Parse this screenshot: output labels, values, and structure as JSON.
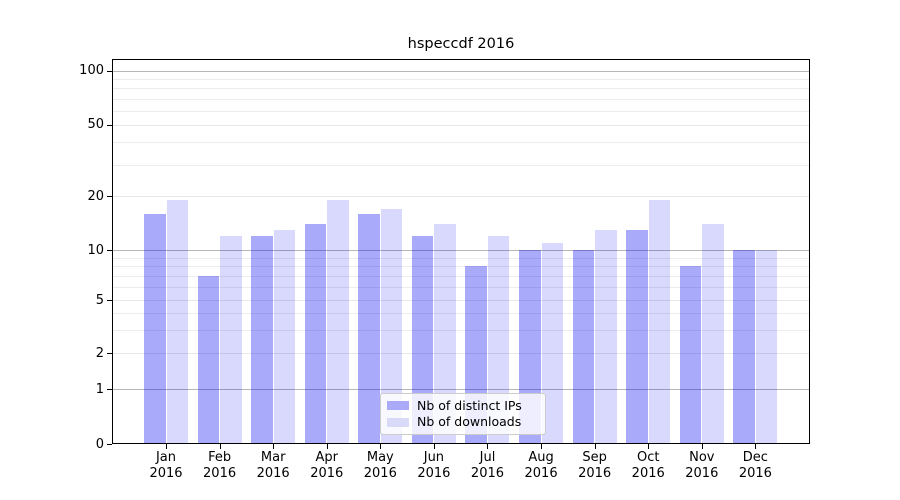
{
  "figure": {
    "title": "hspeccdf 2016"
  },
  "chart_data": {
    "type": "bar",
    "title": "hspeccdf 2016",
    "categories": [
      "Jan",
      "Feb",
      "Mar",
      "Apr",
      "May",
      "Jun",
      "Jul",
      "Aug",
      "Sep",
      "Oct",
      "Nov",
      "Dec"
    ],
    "category_year": "2016",
    "series": [
      {
        "name": "Nb of distinct IPs",
        "key": "distinct-ips",
        "swatch_color": "#aaaaf8",
        "fill_color": "rgba(0,0,240,0.335)",
        "values": [
          16,
          7,
          12,
          14,
          16,
          12,
          8,
          10,
          10,
          13,
          8,
          10
        ]
      },
      {
        "name": "Nb of downloads",
        "key": "downloads",
        "swatch_color": "#d9d9f8",
        "fill_color": "rgba(0,0,240,0.148)",
        "values": [
          19,
          12,
          13,
          19,
          17,
          14,
          12,
          11,
          13,
          19,
          14,
          10
        ]
      }
    ],
    "yscale": "log-with-zero",
    "ylim": [
      0,
      110
    ],
    "ytick_values": [
      0,
      1,
      2,
      5,
      10,
      20,
      50,
      100
    ],
    "ytick_labels": [
      "0",
      "1",
      "2",
      "5",
      "10",
      "20",
      "50",
      "100"
    ],
    "major_grid_values": [
      1,
      10,
      100
    ],
    "labeled_minor_grid_values": [
      2,
      5,
      20,
      50
    ],
    "minor_grid_values": [
      3,
      4,
      6,
      7,
      8,
      9,
      30,
      40,
      60,
      70,
      80,
      90
    ],
    "grid": true,
    "legend_position": "lower center",
    "colors": {
      "major_grid": "#b6b6b6",
      "minor_grid": "#ececec",
      "labeled_minor_grid": "#e7e7e7",
      "frame": "#000000",
      "background": "#ffffff"
    }
  }
}
